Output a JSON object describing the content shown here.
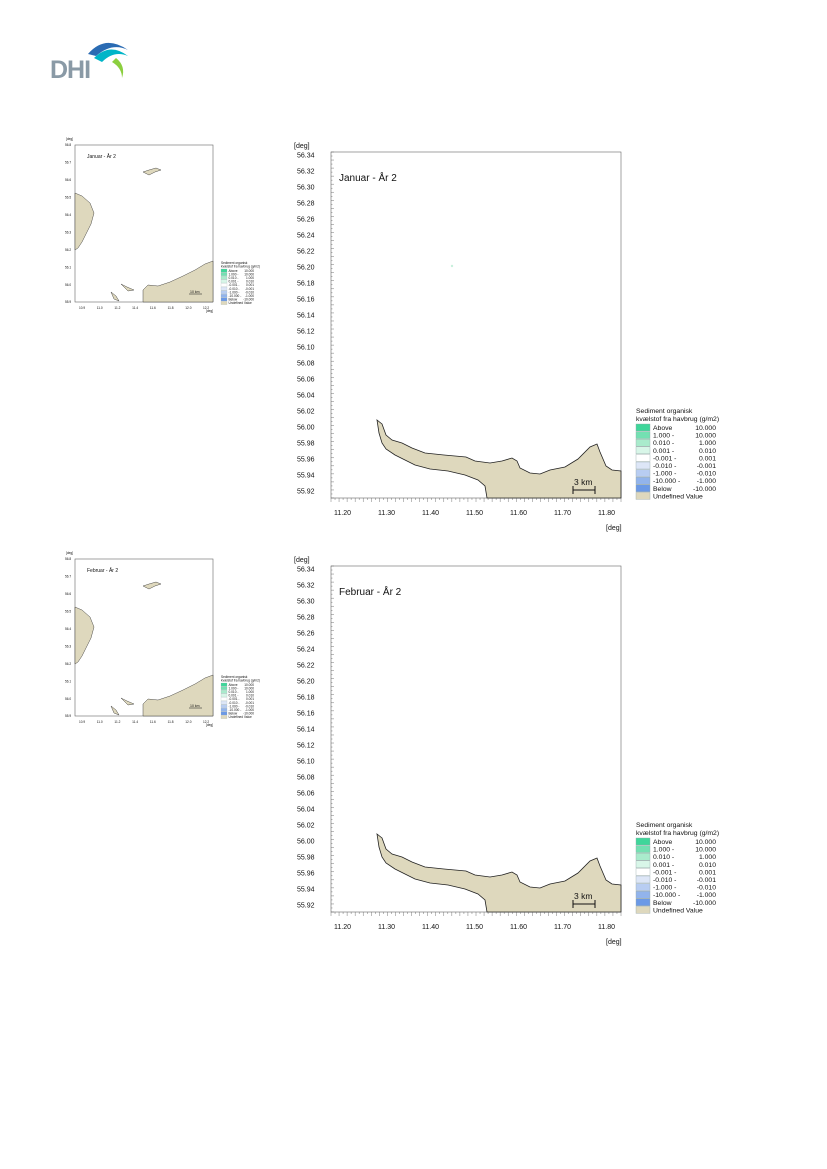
{
  "logo": {
    "text": "DHI",
    "colors": [
      "#00b5c8",
      "#2a6bb3",
      "#8ccf3f"
    ]
  },
  "colors": {
    "land": "#ded8bd",
    "coast": "#222222",
    "frame": "#666666"
  },
  "figures": [
    {
      "title": "Januar - År 2",
      "main_map": {
        "unit_label": "[deg]",
        "y_ticks": [
          "56.34",
          "56.32",
          "56.30",
          "56.28",
          "56.26",
          "56.24",
          "56.22",
          "56.20",
          "56.18",
          "56.16",
          "56.14",
          "56.12",
          "56.10",
          "56.08",
          "56.06",
          "56.04",
          "56.02",
          "56.00",
          "55.98",
          "55.96",
          "55.94",
          "55.92"
        ],
        "x_ticks": [
          "11.20",
          "11.30",
          "11.40",
          "11.50",
          "11.60",
          "11.70",
          "11.80"
        ],
        "scale_label": "3 km"
      },
      "overview_map": {
        "unit_label": "[deg]",
        "y_ticks": [
          "56.8",
          "56.7",
          "56.6",
          "56.5",
          "56.4",
          "56.3",
          "56.2",
          "56.1",
          "56.0",
          "55.9"
        ],
        "x_ticks": [
          "10.9",
          "11.0",
          "11.2",
          "11.4",
          "11.6",
          "11.8",
          "12.0",
          "12.2"
        ],
        "scale_label": "10 km"
      },
      "legend": {
        "title_line1": "Sediment organisk",
        "title_line2": "kvælstof fra havbrug (g/m2)",
        "items": [
          {
            "label": "Above",
            "range": "10.000",
            "color": "#3fd69a"
          },
          {
            "label": "1.000 -",
            "range": "10.000",
            "color": "#74e0b2"
          },
          {
            "label": "0.010 -",
            "range": "1.000",
            "color": "#a9ebcc"
          },
          {
            "label": "0.001 -",
            "range": "0.010",
            "color": "#d8f6e8"
          },
          {
            "label": "-0.001 -",
            "range": "0.001",
            "color": "#ffffff"
          },
          {
            "label": "-0.010 -",
            "range": "-0.001",
            "color": "#dde6f7"
          },
          {
            "label": "-1.000 -",
            "range": "-0.010",
            "color": "#b8cdf2"
          },
          {
            "label": "-10.000 -",
            "range": "-1.000",
            "color": "#92b4ec"
          },
          {
            "label": "Below",
            "range": "-10.000",
            "color": "#6b99e6"
          },
          {
            "label": "Undefined Value",
            "range": "",
            "color": "#ded8bd"
          }
        ]
      }
    },
    {
      "title": "Februar - År 2",
      "main_map": {
        "unit_label": "[deg]",
        "y_ticks": [
          "56.34",
          "56.32",
          "56.30",
          "56.28",
          "56.26",
          "56.24",
          "56.22",
          "56.20",
          "56.18",
          "56.16",
          "56.14",
          "56.12",
          "56.10",
          "56.08",
          "56.06",
          "56.04",
          "56.02",
          "56.00",
          "55.98",
          "55.96",
          "55.94",
          "55.92"
        ],
        "x_ticks": [
          "11.20",
          "11.30",
          "11.40",
          "11.50",
          "11.60",
          "11.70",
          "11.80"
        ],
        "scale_label": "3 km"
      },
      "overview_map": {
        "unit_label": "[deg]",
        "y_ticks": [
          "56.8",
          "56.7",
          "56.6",
          "56.5",
          "56.4",
          "56.3",
          "56.2",
          "56.1",
          "56.0",
          "55.9"
        ],
        "x_ticks": [
          "10.9",
          "11.0",
          "11.2",
          "11.4",
          "11.6",
          "11.8",
          "12.0",
          "12.2"
        ],
        "scale_label": "10 km"
      },
      "legend": {
        "title_line1": "Sediment organisk",
        "title_line2": "kvælstof fra havbrug (g/m2)",
        "items": [
          {
            "label": "Above",
            "range": "10.000",
            "color": "#3fd69a"
          },
          {
            "label": "1.000 -",
            "range": "10.000",
            "color": "#74e0b2"
          },
          {
            "label": "0.010 -",
            "range": "1.000",
            "color": "#a9ebcc"
          },
          {
            "label": "0.001 -",
            "range": "0.010",
            "color": "#d8f6e8"
          },
          {
            "label": "-0.001 -",
            "range": "0.001",
            "color": "#ffffff"
          },
          {
            "label": "-0.010 -",
            "range": "-0.001",
            "color": "#dde6f7"
          },
          {
            "label": "-1.000 -",
            "range": "-0.010",
            "color": "#b8cdf2"
          },
          {
            "label": "-10.000 -",
            "range": "-1.000",
            "color": "#92b4ec"
          },
          {
            "label": "Below",
            "range": "-10.000",
            "color": "#6b99e6"
          },
          {
            "label": "Undefined Value",
            "range": "",
            "color": "#ded8bd"
          }
        ]
      }
    }
  ]
}
